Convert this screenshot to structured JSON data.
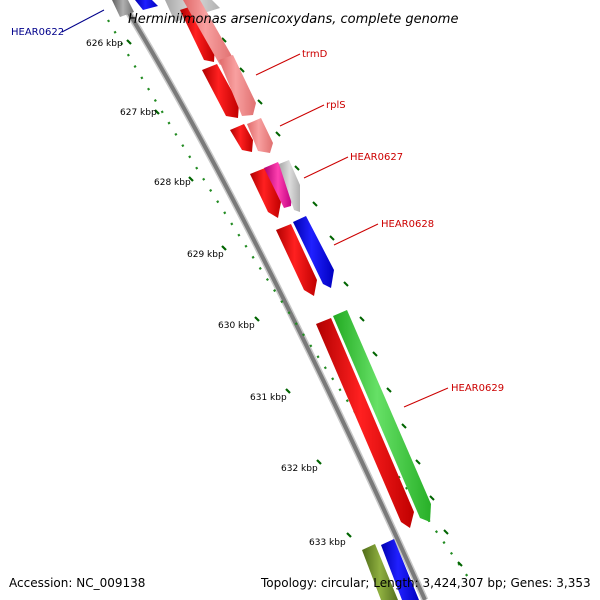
{
  "title": "Herminiimonas arsenicoxydans, complete genome",
  "footer": {
    "accession": "Accession: NC_009138",
    "stats": "Topology: circular; Length: 3,424,307 bp; Genes: 3,353"
  },
  "ticks": [
    {
      "label": "626 kbp"
    },
    {
      "label": "627 kbp"
    },
    {
      "label": "628 kbp"
    },
    {
      "label": "629 kbp"
    },
    {
      "label": "630 kbp"
    },
    {
      "label": "631 kbp"
    },
    {
      "label": "632 kbp"
    },
    {
      "label": "633 kbp"
    }
  ],
  "gene_labels": [
    {
      "text": "HEAR0622",
      "color": "#00008b"
    },
    {
      "text": "trmD",
      "color": "#cc0000"
    },
    {
      "text": "rplS",
      "color": "#cc0000"
    },
    {
      "text": "HEAR0627",
      "color": "#cc0000"
    },
    {
      "text": "HEAR0628",
      "color": "#cc0000"
    },
    {
      "text": "HEAR0629",
      "color": "#cc0000"
    }
  ],
  "colors": {
    "backbone": "#808080",
    "cds": "#ff0000",
    "cds_light": "#f08080",
    "blue_feature": "#0000ff",
    "green_feature": "#33cc33",
    "magenta_feature": "#e01090",
    "olive_feature": "#6b8e23",
    "tick_marks": "#006400"
  }
}
